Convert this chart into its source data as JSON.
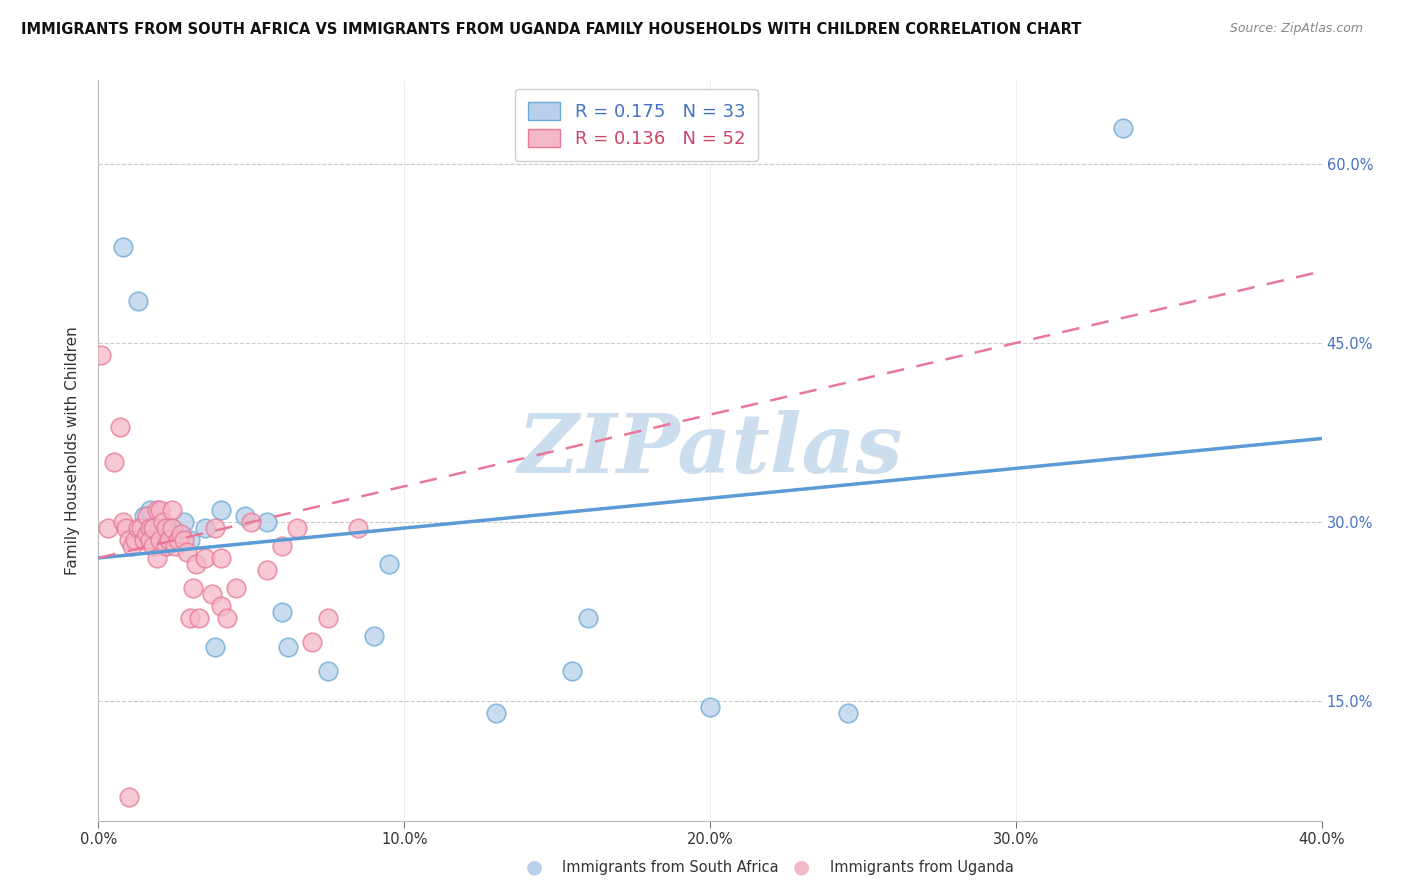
{
  "title": "IMMIGRANTS FROM SOUTH AFRICA VS IMMIGRANTS FROM UGANDA FAMILY HOUSEHOLDS WITH CHILDREN CORRELATION CHART",
  "source": "Source: ZipAtlas.com",
  "ylabel": "Family Households with Children",
  "x_label_sa": "Immigrants from South Africa",
  "x_label_ug": "Immigrants from Uganda",
  "xlim": [
    0.0,
    0.4
  ],
  "ylim": [
    0.05,
    0.67
  ],
  "xticks": [
    0.0,
    0.1,
    0.2,
    0.3,
    0.4
  ],
  "yticks": [
    0.15,
    0.3,
    0.45,
    0.6
  ],
  "ytick_labels_right": [
    "15.0%",
    "30.0%",
    "45.0%",
    "60.0%"
  ],
  "xtick_labels": [
    "0.0%",
    "10.0%",
    "20.0%",
    "30.0%",
    "40.0%"
  ],
  "legend_r_sa": "R = 0.175",
  "legend_n_sa": "N = 33",
  "legend_r_ug": "R = 0.136",
  "legend_n_ug": "N = 52",
  "color_sa_fill": "#b8d0ea",
  "color_ug_fill": "#f5b8c8",
  "color_sa_edge": "#6aaad5",
  "color_ug_edge": "#e87898",
  "color_sa_line": "#5b9bd5",
  "color_ug_line": "#e87898",
  "color_sa_legend": "#4472c4",
  "color_ug_legend": "#cc4466",
  "watermark": "ZIPatlas",
  "watermark_color": "#ccdded",
  "sa_x": [
    0.008,
    0.013,
    0.015,
    0.016,
    0.017,
    0.017,
    0.018,
    0.018,
    0.019,
    0.02,
    0.021,
    0.022,
    0.023,
    0.024,
    0.025,
    0.028,
    0.03,
    0.035,
    0.038,
    0.04,
    0.048,
    0.055,
    0.06,
    0.062,
    0.075,
    0.09,
    0.095,
    0.13,
    0.155,
    0.16,
    0.2,
    0.245,
    0.335
  ],
  "sa_y": [
    0.53,
    0.485,
    0.305,
    0.295,
    0.29,
    0.31,
    0.285,
    0.29,
    0.295,
    0.285,
    0.295,
    0.28,
    0.285,
    0.295,
    0.29,
    0.3,
    0.285,
    0.295,
    0.195,
    0.31,
    0.305,
    0.3,
    0.225,
    0.195,
    0.175,
    0.205,
    0.265,
    0.14,
    0.175,
    0.22,
    0.145,
    0.14,
    0.63
  ],
  "ug_x": [
    0.001,
    0.003,
    0.005,
    0.007,
    0.008,
    0.009,
    0.01,
    0.011,
    0.012,
    0.013,
    0.014,
    0.015,
    0.016,
    0.016,
    0.017,
    0.017,
    0.018,
    0.018,
    0.019,
    0.019,
    0.02,
    0.02,
    0.021,
    0.022,
    0.022,
    0.023,
    0.024,
    0.024,
    0.025,
    0.026,
    0.027,
    0.028,
    0.029,
    0.03,
    0.031,
    0.032,
    0.033,
    0.035,
    0.037,
    0.038,
    0.04,
    0.04,
    0.042,
    0.045,
    0.05,
    0.055,
    0.06,
    0.065,
    0.07,
    0.075,
    0.01,
    0.085
  ],
  "ug_y": [
    0.44,
    0.295,
    0.35,
    0.38,
    0.3,
    0.295,
    0.285,
    0.28,
    0.285,
    0.295,
    0.295,
    0.285,
    0.29,
    0.305,
    0.295,
    0.285,
    0.28,
    0.295,
    0.31,
    0.27,
    0.285,
    0.31,
    0.3,
    0.28,
    0.295,
    0.285,
    0.31,
    0.295,
    0.28,
    0.285,
    0.29,
    0.285,
    0.275,
    0.22,
    0.245,
    0.265,
    0.22,
    0.27,
    0.24,
    0.295,
    0.27,
    0.23,
    0.22,
    0.245,
    0.3,
    0.26,
    0.28,
    0.295,
    0.2,
    0.22,
    0.07,
    0.295
  ],
  "sa_trendline_x": [
    0.0,
    0.4
  ],
  "sa_trendline_y": [
    0.27,
    0.37
  ],
  "ug_trendline_x": [
    0.0,
    0.4
  ],
  "ug_trendline_y": [
    0.27,
    0.51
  ]
}
